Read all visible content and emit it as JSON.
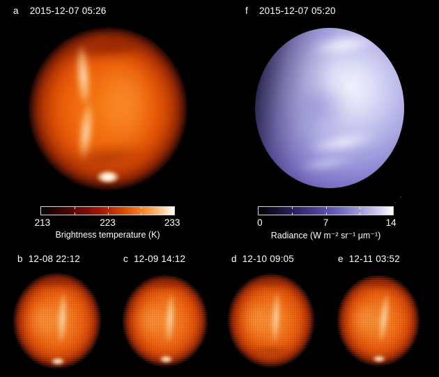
{
  "panels": {
    "a": {
      "letter": "a",
      "datetime": "2015-12-07 05:26"
    },
    "f": {
      "letter": "f",
      "datetime": "2015-12-07 05:20"
    },
    "b": {
      "letter": "b",
      "datetime": "12-08 22:12"
    },
    "c": {
      "letter": "c",
      "datetime": "12-09 14:12"
    },
    "d": {
      "letter": "d",
      "datetime": "12-10 09:05"
    },
    "e": {
      "letter": "e",
      "datetime": "12-11 03:52"
    }
  },
  "colorbars": {
    "brightness_temperature": {
      "title": "Brightness temperature (K)",
      "ticks": [
        "213",
        "223",
        "233"
      ],
      "range": [
        213,
        233
      ],
      "colormap_low": "#000000",
      "colormap_mid": "#c23305",
      "colormap_high": "#ffffff"
    },
    "radiance": {
      "title": "Radiance (W m⁻² sr⁻¹ μm⁻¹)",
      "ticks": [
        "0",
        "7",
        "14"
      ],
      "range": [
        0,
        14
      ],
      "colormap_low": "#000000",
      "colormap_mid": "#6459b8",
      "colormap_high": "#ffffff"
    }
  },
  "colors": {
    "background": "#000000",
    "text": "#ffffff",
    "venus_thermal_orange": "#f06c10",
    "venus_uv_violet": "#7a70c2"
  }
}
